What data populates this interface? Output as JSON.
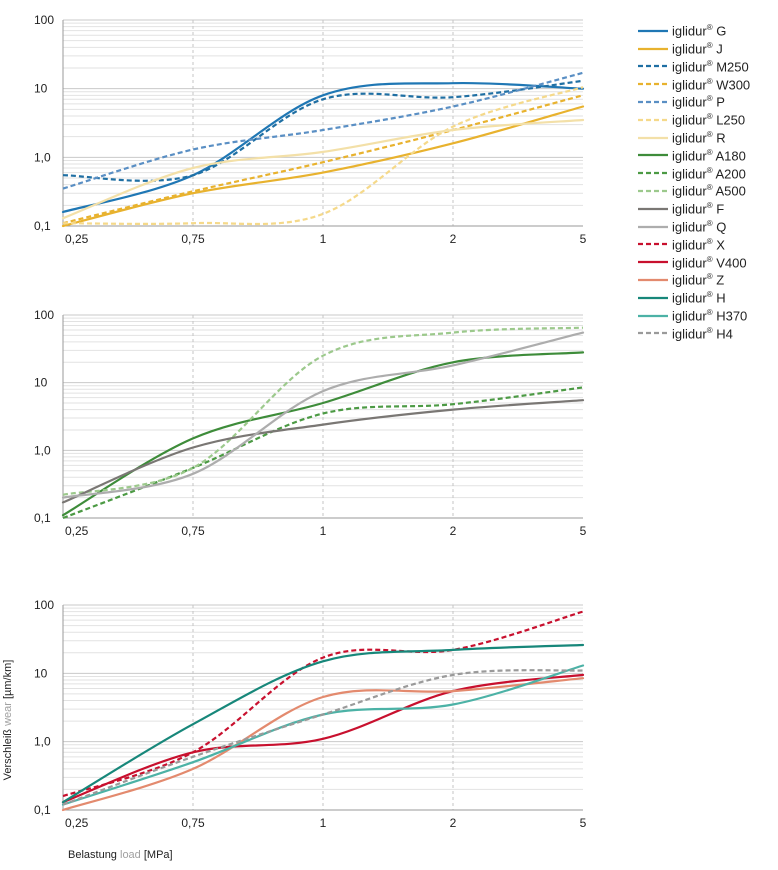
{
  "axis_labels": {
    "y_de": "Verschleiß",
    "y_en": "wear",
    "y_unit": "[µm/km]",
    "x_de": "Belastung",
    "x_en": "load",
    "x_unit": "[MPa]"
  },
  "legend": [
    {
      "brand": "iglidur",
      "mark": "®",
      "model": "G",
      "color": "#1f77b4",
      "dash": "solid"
    },
    {
      "brand": "iglidur",
      "mark": "®",
      "model": "J",
      "color": "#e8b22e",
      "dash": "solid"
    },
    {
      "brand": "iglidur",
      "mark": "®",
      "model": "M250",
      "color": "#1f6fa3",
      "dash": "dashed"
    },
    {
      "brand": "iglidur",
      "mark": "®",
      "model": "W300",
      "color": "#e8b22e",
      "dash": "dashed"
    },
    {
      "brand": "iglidur",
      "mark": "®",
      "model": "P",
      "color": "#5a8fc4",
      "dash": "dashed"
    },
    {
      "brand": "iglidur",
      "mark": "®",
      "model": "L250",
      "color": "#f5d98a",
      "dash": "dashed"
    },
    {
      "brand": "iglidur",
      "mark": "®",
      "model": "R",
      "color": "#f3e0a8",
      "dash": "solid"
    },
    {
      "brand": "iglidur",
      "mark": "®",
      "model": "A180",
      "color": "#3e8c3a",
      "dash": "solid"
    },
    {
      "brand": "iglidur",
      "mark": "®",
      "model": "A200",
      "color": "#4c9a44",
      "dash": "dashed"
    },
    {
      "brand": "iglidur",
      "mark": "®",
      "model": "A500",
      "color": "#9cc98c",
      "dash": "dashed"
    },
    {
      "brand": "iglidur",
      "mark": "®",
      "model": "F",
      "color": "#7a7774",
      "dash": "solid"
    },
    {
      "brand": "iglidur",
      "mark": "®",
      "model": "Q",
      "color": "#adadad",
      "dash": "solid"
    },
    {
      "brand": "iglidur",
      "mark": "®",
      "model": "X",
      "color": "#c8102e",
      "dash": "dashed"
    },
    {
      "brand": "iglidur",
      "mark": "®",
      "model": "V400",
      "color": "#c8102e",
      "dash": "solid"
    },
    {
      "brand": "iglidur",
      "mark": "®",
      "model": "Z",
      "color": "#e38a6e",
      "dash": "solid"
    },
    {
      "brand": "iglidur",
      "mark": "®",
      "model": "H",
      "color": "#17877a",
      "dash": "solid"
    },
    {
      "brand": "iglidur",
      "mark": "®",
      "model": "H370",
      "color": "#4cb2a6",
      "dash": "solid"
    },
    {
      "brand": "iglidur",
      "mark": "®",
      "model": "H4",
      "color": "#9a9a9a",
      "dash": "dashed"
    }
  ],
  "chart_data": [
    {
      "type": "line",
      "title": "",
      "xlabel": "Belastung load [MPa]",
      "ylabel": "Verschleiß wear [µm/km]",
      "yscale": "log",
      "ylim": [
        0.1,
        100
      ],
      "categories": [
        "0,25",
        "0,75",
        "1",
        "2",
        "5"
      ],
      "yticks": [
        "100",
        "10",
        "1,0",
        "0,1"
      ],
      "series": [
        {
          "name": "iglidur® G",
          "color": "#1f77b4",
          "dash": "solid",
          "values": [
            0.16,
            0.55,
            8.0,
            12.0,
            10.0
          ]
        },
        {
          "name": "iglidur® J",
          "color": "#e8b22e",
          "dash": "solid",
          "values": [
            0.1,
            0.3,
            0.6,
            1.6,
            5.5
          ]
        },
        {
          "name": "iglidur® M250",
          "color": "#1f6fa3",
          "dash": "dashed",
          "values": [
            0.55,
            0.55,
            7.0,
            7.5,
            13.0
          ]
        },
        {
          "name": "iglidur® W300",
          "color": "#e8b22e",
          "dash": "dashed",
          "values": [
            0.11,
            0.32,
            0.85,
            2.5,
            8.0
          ]
        },
        {
          "name": "iglidur® P",
          "color": "#5a8fc4",
          "dash": "dashed",
          "values": [
            0.35,
            1.3,
            2.5,
            5.5,
            17.0
          ]
        },
        {
          "name": "iglidur® L250",
          "color": "#f5d98a",
          "dash": "dashed",
          "values": [
            0.11,
            0.11,
            0.15,
            2.8,
            10.5
          ]
        },
        {
          "name": "iglidur® R",
          "color": "#f3e0a8",
          "dash": "solid",
          "values": [
            0.13,
            0.7,
            1.2,
            2.5,
            3.5
          ]
        }
      ]
    },
    {
      "type": "line",
      "title": "",
      "xlabel": "Belastung load [MPa]",
      "ylabel": "Verschleiß wear [µm/km]",
      "yscale": "log",
      "ylim": [
        0.1,
        100
      ],
      "categories": [
        "0,25",
        "0,75",
        "1",
        "2",
        "5"
      ],
      "yticks": [
        "100",
        "10",
        "1,0",
        "0,1"
      ],
      "series": [
        {
          "name": "iglidur® A180",
          "color": "#3e8c3a",
          "dash": "solid",
          "values": [
            0.11,
            1.5,
            5.0,
            20.0,
            28.0
          ]
        },
        {
          "name": "iglidur® A200",
          "color": "#4c9a44",
          "dash": "dashed",
          "values": [
            0.1,
            0.55,
            3.5,
            4.8,
            8.5
          ]
        },
        {
          "name": "iglidur® A500",
          "color": "#9cc98c",
          "dash": "dashed",
          "values": [
            0.22,
            0.55,
            25.0,
            55.0,
            65.0
          ]
        },
        {
          "name": "iglidur® F",
          "color": "#7a7774",
          "dash": "solid",
          "values": [
            0.17,
            1.1,
            2.4,
            4.0,
            5.5
          ]
        },
        {
          "name": "iglidur® Q",
          "color": "#adadad",
          "dash": "solid",
          "values": [
            0.2,
            0.45,
            7.5,
            18.0,
            55.0
          ]
        }
      ]
    },
    {
      "type": "line",
      "title": "",
      "xlabel": "Belastung load [MPa]",
      "ylabel": "Verschleiß wear [µm/km]",
      "yscale": "log",
      "ylim": [
        0.1,
        100
      ],
      "categories": [
        "0,25",
        "0,75",
        "1",
        "2",
        "5"
      ],
      "yticks": [
        "100",
        "10",
        "1,0",
        "0,1"
      ],
      "series": [
        {
          "name": "iglidur® X",
          "color": "#c8102e",
          "dash": "dashed",
          "values": [
            0.16,
            0.7,
            17.0,
            22.0,
            80.0
          ]
        },
        {
          "name": "iglidur® V400",
          "color": "#c8102e",
          "dash": "solid",
          "values": [
            0.13,
            0.7,
            1.1,
            5.5,
            9.5
          ]
        },
        {
          "name": "iglidur® Z",
          "color": "#e38a6e",
          "dash": "solid",
          "values": [
            0.1,
            0.4,
            4.5,
            5.5,
            8.5
          ]
        },
        {
          "name": "iglidur® H",
          "color": "#17877a",
          "dash": "solid",
          "values": [
            0.13,
            1.8,
            15.0,
            22.0,
            26.0
          ]
        },
        {
          "name": "iglidur® H370",
          "color": "#4cb2a6",
          "dash": "solid",
          "values": [
            0.12,
            0.5,
            2.5,
            3.5,
            13.0
          ]
        },
        {
          "name": "iglidur® H4",
          "color": "#9a9a9a",
          "dash": "dashed",
          "values": [
            0.12,
            0.6,
            2.5,
            9.5,
            11.0
          ]
        }
      ]
    }
  ]
}
